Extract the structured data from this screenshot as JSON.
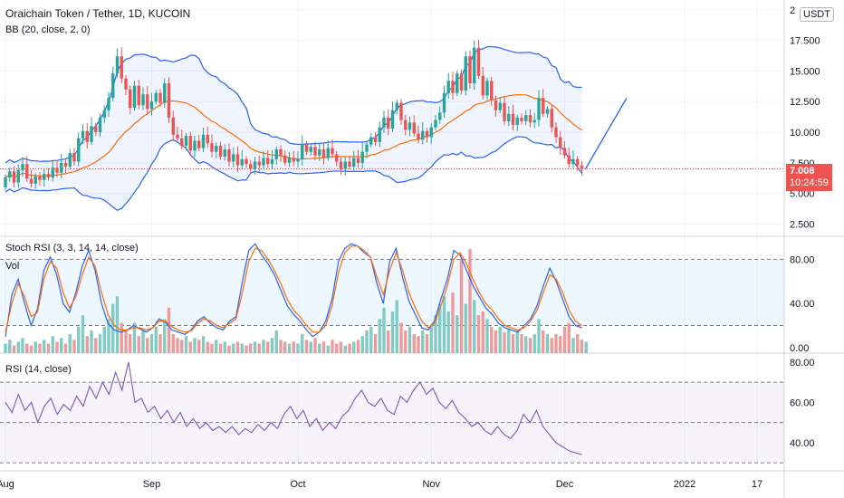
{
  "header": {
    "title": "Oraichain Token / Tether, 1D, KUCOIN",
    "bb_label": "BB (20, close, 2, 0)",
    "currency": "USDT"
  },
  "price_tag": {
    "price": "7.008",
    "countdown": "10:24:59",
    "color": "#ef5350"
  },
  "panes": {
    "stoch_label": "Stoch RSI (3, 3, 14, 14, close)",
    "vol_label": "Vol",
    "rsi_label": "RSI (14, close)"
  },
  "colors": {
    "up": "#26a69a",
    "down": "#ef5350",
    "bb_band": "#2962ff",
    "bb_basis": "#ff6d00",
    "stoch_k": "#2962ff",
    "stoch_d": "#ff6d00",
    "rsi": "#7e57c2",
    "vol_up": "#80cbc4",
    "vol_down": "#ef9a9a"
  },
  "chart_data": [
    {
      "type": "candlestick",
      "title": "Oraichain Token / Tether, 1D, KUCOIN",
      "y_ticks": [
        "2.500",
        "5.000",
        "7.500",
        "10.000",
        "12.500",
        "15.000",
        "17.500",
        "2"
      ],
      "ylim": [
        1.5,
        20.8
      ],
      "x_ticks": [
        "Aug",
        "Sep",
        "Oct",
        "Nov",
        "Dec",
        "2022",
        "17"
      ],
      "last_price": 7.008,
      "indicator": "BB (20, close, 2, 0)",
      "candles": [
        [
          5.5,
          6.3
        ],
        [
          6.3,
          6.8
        ],
        [
          6.8,
          5.9
        ],
        [
          5.9,
          6.9
        ],
        [
          6.9,
          7.4
        ],
        [
          7.4,
          6.2
        ],
        [
          6.2,
          5.8
        ],
        [
          5.8,
          6.4
        ],
        [
          6.4,
          6.1
        ],
        [
          6.1,
          6.6
        ],
        [
          6.6,
          6.3
        ],
        [
          6.3,
          7.1
        ],
        [
          7.1,
          6.7
        ],
        [
          6.7,
          7.5
        ],
        [
          7.5,
          7.2
        ],
        [
          7.2,
          8.3
        ],
        [
          8.3,
          7.6
        ],
        [
          7.6,
          9.5
        ],
        [
          9.5,
          10.1
        ],
        [
          10.1,
          9.2
        ],
        [
          9.2,
          10.5
        ],
        [
          10.5,
          10.0
        ],
        [
          10.0,
          11.2
        ],
        [
          11.2,
          11.8
        ],
        [
          11.8,
          12.8
        ],
        [
          12.8,
          14.8
        ],
        [
          14.8,
          16.2
        ],
        [
          16.2,
          14.4
        ],
        [
          14.4,
          13.5
        ],
        [
          13.5,
          12.0
        ],
        [
          12.0,
          13.8
        ],
        [
          13.8,
          12.2
        ],
        [
          12.2,
          13.1
        ],
        [
          13.1,
          11.9
        ],
        [
          11.9,
          12.5
        ],
        [
          12.5,
          13.2
        ],
        [
          13.2,
          12.4
        ],
        [
          12.4,
          14.0
        ],
        [
          14.0,
          11.2
        ],
        [
          11.2,
          9.8
        ],
        [
          9.8,
          9.5
        ],
        [
          9.5,
          8.9
        ],
        [
          8.9,
          9.7
        ],
        [
          9.7,
          8.5
        ],
        [
          8.5,
          9.3
        ],
        [
          9.3,
          8.7
        ],
        [
          8.7,
          9.8
        ],
        [
          9.8,
          9.1
        ],
        [
          9.1,
          8.4
        ],
        [
          8.4,
          8.9
        ],
        [
          8.9,
          8.0
        ],
        [
          8.0,
          8.6
        ],
        [
          8.6,
          7.6
        ],
        [
          7.6,
          8.2
        ],
        [
          8.2,
          7.3
        ],
        [
          7.3,
          7.8
        ],
        [
          7.8,
          7.4
        ],
        [
          7.4,
          7.0
        ],
        [
          7.0,
          7.6
        ],
        [
          7.6,
          7.3
        ],
        [
          7.3,
          7.9
        ],
        [
          7.9,
          7.4
        ],
        [
          7.4,
          7.8
        ],
        [
          7.8,
          8.6
        ],
        [
          8.6,
          8.1
        ],
        [
          8.1,
          7.5
        ],
        [
          7.5,
          7.9
        ],
        [
          7.9,
          7.6
        ],
        [
          7.6,
          7.8
        ],
        [
          7.8,
          9.0
        ],
        [
          9.0,
          8.4
        ],
        [
          8.4,
          8.8
        ],
        [
          8.8,
          8.1
        ],
        [
          8.1,
          8.6
        ],
        [
          8.6,
          7.9
        ],
        [
          7.9,
          8.7
        ],
        [
          8.7,
          8.2
        ],
        [
          8.2,
          7.6
        ],
        [
          7.6,
          7.0
        ],
        [
          7.0,
          7.6
        ],
        [
          7.6,
          7.2
        ],
        [
          7.2,
          7.9
        ],
        [
          7.9,
          7.5
        ],
        [
          7.5,
          8.4
        ],
        [
          8.4,
          9.0
        ],
        [
          9.0,
          9.6
        ],
        [
          9.6,
          9.2
        ],
        [
          9.2,
          10.4
        ],
        [
          10.4,
          11.2
        ],
        [
          11.2,
          10.3
        ],
        [
          10.3,
          11.8
        ],
        [
          11.8,
          12.4
        ],
        [
          12.4,
          11.0
        ],
        [
          11.0,
          10.2
        ],
        [
          10.2,
          10.8
        ],
        [
          10.8,
          9.9
        ],
        [
          9.9,
          9.4
        ],
        [
          9.4,
          10.1
        ],
        [
          10.1,
          9.6
        ],
        [
          9.6,
          10.4
        ],
        [
          10.4,
          11.0
        ],
        [
          11.0,
          11.6
        ],
        [
          11.6,
          13.2
        ],
        [
          13.2,
          14.2
        ],
        [
          14.2,
          13.2
        ],
        [
          13.2,
          14.8
        ],
        [
          14.8,
          13.4
        ],
        [
          13.4,
          16.2
        ],
        [
          16.2,
          14.0
        ],
        [
          14.0,
          16.9
        ],
        [
          16.9,
          14.6
        ],
        [
          14.6,
          13.0
        ],
        [
          13.0,
          14.2
        ],
        [
          14.2,
          12.6
        ],
        [
          12.6,
          11.8
        ],
        [
          11.8,
          12.4
        ],
        [
          12.4,
          10.9
        ],
        [
          10.9,
          11.5
        ],
        [
          11.5,
          10.6
        ],
        [
          10.6,
          11.2
        ],
        [
          11.2,
          10.9
        ],
        [
          10.9,
          11.4
        ],
        [
          11.4,
          10.8
        ],
        [
          10.8,
          11.0
        ],
        [
          11.0,
          12.8
        ],
        [
          12.8,
          11.5
        ],
        [
          11.5,
          11.9
        ],
        [
          11.9,
          10.4
        ],
        [
          10.4,
          9.6
        ],
        [
          9.6,
          8.7
        ],
        [
          8.7,
          8.1
        ],
        [
          8.1,
          7.4
        ],
        [
          7.4,
          7.8
        ],
        [
          7.8,
          7.3
        ],
        [
          7.3,
          7.0
        ]
      ]
    },
    {
      "type": "line",
      "title": "Stoch RSI (3, 3, 14, 14, close)",
      "y_ticks": [
        "0.00",
        "40.00",
        "80.00"
      ],
      "ylim": [
        -5,
        100
      ],
      "series": [
        {
          "name": "K",
          "values": [
            10,
            48,
            62,
            40,
            20,
            35,
            70,
            82,
            66,
            40,
            32,
            50,
            74,
            88,
            70,
            40,
            22,
            16,
            14,
            16,
            20,
            17,
            14,
            18,
            26,
            23,
            16,
            14,
            12,
            16,
            24,
            28,
            22,
            18,
            16,
            24,
            28,
            60,
            88,
            94,
            84,
            76,
            66,
            52,
            38,
            30,
            24,
            16,
            10,
            14,
            24,
            44,
            78,
            90,
            94,
            92,
            86,
            82,
            58,
            40,
            78,
            90,
            64,
            42,
            30,
            18,
            16,
            24,
            44,
            62,
            88,
            84,
            70,
            56,
            46,
            36,
            30,
            22,
            18,
            16,
            14,
            20,
            26,
            38,
            56,
            72,
            60,
            44,
            28,
            20,
            18
          ]
        },
        {
          "name": "D",
          "values": [
            14,
            40,
            58,
            46,
            28,
            32,
            62,
            78,
            72,
            50,
            36,
            46,
            66,
            82,
            74,
            50,
            30,
            20,
            16,
            16,
            18,
            18,
            16,
            18,
            24,
            24,
            19,
            16,
            14,
            15,
            22,
            26,
            24,
            20,
            18,
            22,
            26,
            50,
            78,
            90,
            88,
            80,
            70,
            58,
            44,
            34,
            28,
            20,
            14,
            14,
            20,
            38,
            68,
            86,
            92,
            92,
            88,
            82,
            64,
            48,
            70,
            86,
            70,
            50,
            36,
            24,
            18,
            22,
            38,
            56,
            80,
            86,
            76,
            62,
            50,
            40,
            34,
            26,
            20,
            18,
            16,
            18,
            24,
            34,
            50,
            66,
            62,
            50,
            34,
            24,
            20
          ]
        }
      ],
      "volume": [
        5,
        7,
        4,
        6,
        8,
        5,
        4,
        6,
        5,
        7,
        5,
        9,
        6,
        8,
        5,
        10,
        7,
        14,
        20,
        9,
        12,
        8,
        10,
        14,
        18,
        26,
        30,
        16,
        12,
        10,
        16,
        9,
        12,
        8,
        10,
        14,
        10,
        18,
        24,
        10,
        8,
        7,
        9,
        6,
        8,
        7,
        9,
        6,
        5,
        7,
        5,
        6,
        4,
        5,
        6,
        5,
        4,
        5,
        6,
        5,
        7,
        6,
        8,
        12,
        7,
        6,
        5,
        6,
        5,
        10,
        7,
        6,
        8,
        5,
        6,
        4,
        7,
        5,
        6,
        4,
        5,
        6,
        7,
        9,
        12,
        14,
        10,
        18,
        24,
        12,
        22,
        28,
        16,
        12,
        14,
        10,
        9,
        12,
        10,
        15,
        20,
        26,
        30,
        22,
        32,
        20,
        50,
        26,
        55,
        28,
        20,
        22,
        18,
        14,
        12,
        14,
        11,
        13,
        10,
        12,
        10,
        9,
        8,
        10,
        18,
        12,
        10,
        8,
        10,
        9,
        14,
        16,
        8,
        10,
        7,
        6
      ]
    },
    {
      "type": "line",
      "title": "RSI (14, close)",
      "y_ticks": [
        "40.00",
        "60.00",
        "80.00"
      ],
      "ylim": [
        26,
        84
      ],
      "series": [
        {
          "name": "RSI",
          "values": [
            60,
            55,
            64,
            56,
            60,
            50,
            58,
            62,
            54,
            59,
            56,
            63,
            58,
            68,
            62,
            70,
            64,
            75,
            66,
            80,
            60,
            62,
            55,
            58,
            52,
            56,
            50,
            55,
            48,
            52,
            47,
            50,
            46,
            48,
            45,
            48,
            44,
            47,
            45,
            49,
            46,
            50,
            47,
            54,
            58,
            52,
            56,
            48,
            52,
            46,
            50,
            47,
            53,
            56,
            62,
            66,
            60,
            58,
            62,
            56,
            54,
            63,
            60,
            66,
            70,
            64,
            67,
            60,
            57,
            61,
            55,
            52,
            48,
            50,
            46,
            44,
            48,
            44,
            42,
            46,
            54,
            50,
            56,
            48,
            44,
            40,
            38,
            36,
            35,
            34
          ]
        }
      ]
    }
  ]
}
